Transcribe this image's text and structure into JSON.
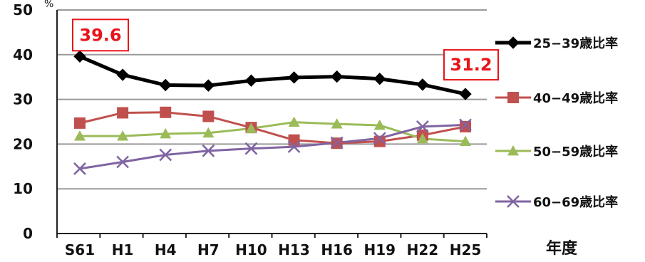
{
  "chart_data": {
    "type": "line",
    "xlabel": "年度",
    "ylabel": "%",
    "ylim": [
      0,
      50
    ],
    "yticks": [
      0,
      10,
      20,
      30,
      40,
      50
    ],
    "grid": true,
    "legend_position": "right",
    "categories": [
      "S61",
      "H1",
      "H4",
      "H7",
      "H10",
      "H13",
      "H16",
      "H19",
      "H22",
      "H25"
    ],
    "series": [
      {
        "name": "25−39歳比率",
        "color": "#000000",
        "marker": "diamond",
        "values": [
          39.6,
          35.5,
          33.2,
          33.1,
          34.2,
          34.9,
          35.1,
          34.6,
          33.3,
          31.2
        ]
      },
      {
        "name": "40−49歳比率",
        "color": "#c0504d",
        "marker": "square",
        "values": [
          24.7,
          27.0,
          27.1,
          26.2,
          23.7,
          20.9,
          20.2,
          20.6,
          22.0,
          23.9
        ]
      },
      {
        "name": "50−59歳比率",
        "color": "#9bbb59",
        "marker": "triangle",
        "values": [
          21.8,
          21.8,
          22.3,
          22.5,
          23.5,
          24.9,
          24.5,
          24.2,
          21.2,
          20.6
        ]
      },
      {
        "name": "60−69歳比率",
        "color": "#8064a2",
        "marker": "x",
        "values": [
          14.5,
          16.0,
          17.6,
          18.5,
          19.0,
          19.4,
          20.3,
          21.3,
          23.9,
          24.3
        ]
      }
    ],
    "annotations": [
      {
        "series": 0,
        "index": 0,
        "text": "39.6"
      },
      {
        "series": 0,
        "index": 9,
        "text": "31.2"
      }
    ]
  }
}
